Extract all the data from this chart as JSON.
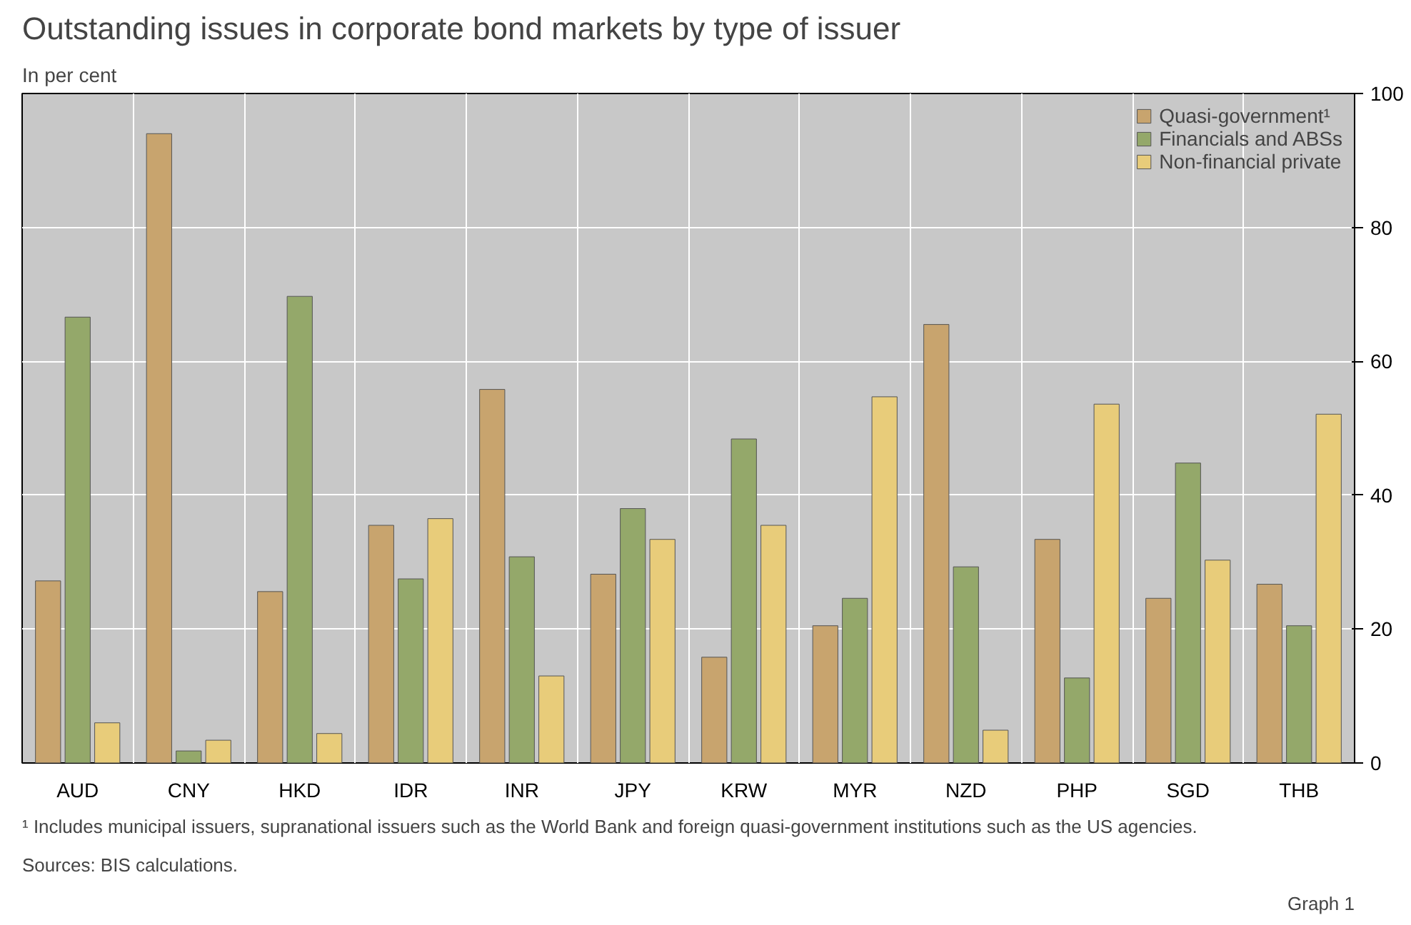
{
  "chart_data": {
    "type": "bar",
    "title": "Outstanding issues in corporate bond markets by type of issuer",
    "subtitle": "In per cent",
    "categories": [
      "AUD",
      "CNY",
      "HKD",
      "IDR",
      "INR",
      "JPY",
      "KRW",
      "MYR",
      "NZD",
      "PHP",
      "SGD",
      "THB"
    ],
    "series": [
      {
        "name": "Quasi-government¹",
        "color": "#c8a46e",
        "values": [
          27.2,
          94,
          25.6,
          35.5,
          55.8,
          28.2,
          15.8,
          20.5,
          65.5,
          33.4,
          24.6,
          26.7
        ]
      },
      {
        "name": "Financials and ABSs",
        "color": "#94a86a",
        "values": [
          66.6,
          1.8,
          69.7,
          27.5,
          30.8,
          38,
          48.4,
          24.6,
          29.3,
          12.7,
          44.8,
          20.5
        ]
      },
      {
        "name": "Non-financial private",
        "color": "#e8cc7a",
        "values": [
          6,
          3.4,
          4.4,
          36.5,
          13,
          33.4,
          35.5,
          54.7,
          4.9,
          53.6,
          30.3,
          52.1
        ]
      }
    ],
    "ylim": [
      0,
      100
    ],
    "yticks": [
      0,
      20,
      40,
      60,
      80,
      100
    ],
    "grid": true,
    "legend": "top right",
    "annotations": [
      "¹  Includes municipal issuers, supranational issuers such as the World Bank and foreign quasi-government institutions such as the US agencies.",
      "Sources: BIS calculations.",
      "Graph 1"
    ]
  }
}
